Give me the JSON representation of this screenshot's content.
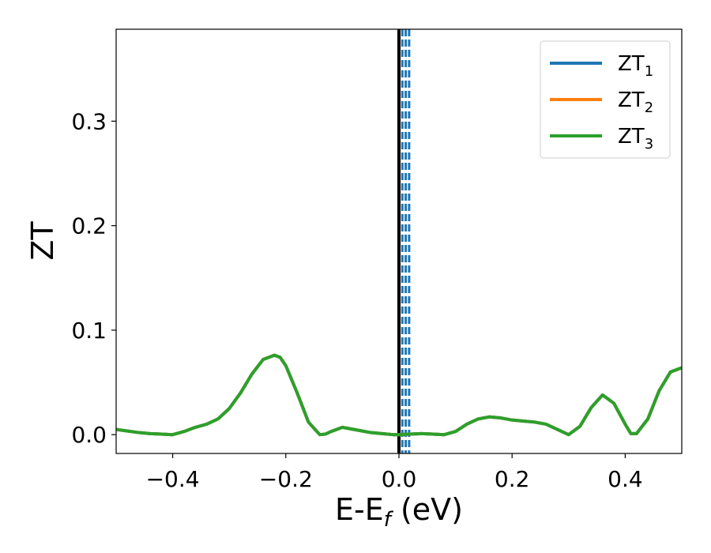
{
  "chart_data": {
    "type": "line",
    "xlabel": "E-E",
    "xlabel_sub": "f",
    "xlabel_unit": " (eV)",
    "ylabel": "ZT",
    "xlim": [
      -0.5,
      0.5
    ],
    "ylim": [
      -0.018,
      0.388
    ],
    "x_ticks": [
      -0.4,
      -0.2,
      0.0,
      0.2,
      0.4
    ],
    "x_tick_labels": [
      "−0.4",
      "−0.2",
      "0.0",
      "0.2",
      "0.4"
    ],
    "y_ticks": [
      0.0,
      0.1,
      0.2,
      0.3
    ],
    "y_tick_labels": [
      "0.0",
      "0.1",
      "0.2",
      "0.3"
    ],
    "grid": false,
    "legend_position": "top-right",
    "x": [
      -0.5,
      -0.46,
      -0.44,
      -0.42,
      -0.4,
      -0.38,
      -0.36,
      -0.34,
      -0.32,
      -0.3,
      -0.28,
      -0.26,
      -0.24,
      -0.22,
      -0.21,
      -0.2,
      -0.18,
      -0.16,
      -0.14,
      -0.13,
      -0.12,
      -0.1,
      -0.09,
      -0.07,
      -0.05,
      -0.03,
      -0.01,
      0.0,
      0.02,
      0.04,
      0.06,
      0.08,
      0.1,
      0.12,
      0.14,
      0.16,
      0.18,
      0.2,
      0.22,
      0.24,
      0.26,
      0.28,
      0.3,
      0.32,
      0.34,
      0.36,
      0.38,
      0.4,
      0.41,
      0.42,
      0.44,
      0.46,
      0.48,
      0.5
    ],
    "series": [
      {
        "name": "ZT",
        "name_sub": "1",
        "color": "#1f77b4",
        "values": [
          0.005,
          0.002,
          0.001,
          0.0005,
          0.0,
          0.003,
          0.007,
          0.01,
          0.015,
          0.025,
          0.04,
          0.058,
          0.072,
          0.076,
          0.074,
          0.066,
          0.04,
          0.012,
          0.0,
          0.0005,
          0.003,
          0.007,
          0.006,
          0.004,
          0.002,
          0.001,
          0.0,
          0.0,
          0.0005,
          0.001,
          0.0005,
          0.0,
          0.003,
          0.01,
          0.015,
          0.017,
          0.016,
          0.014,
          0.013,
          0.012,
          0.01,
          0.005,
          0.0,
          0.008,
          0.026,
          0.038,
          0.03,
          0.01,
          0.001,
          0.001,
          0.015,
          0.042,
          0.06,
          0.064
        ]
      },
      {
        "name": "ZT",
        "name_sub": "2",
        "color": "#ff7f0e",
        "values": [
          0.005,
          0.002,
          0.001,
          0.0005,
          0.0,
          0.003,
          0.007,
          0.01,
          0.015,
          0.025,
          0.04,
          0.058,
          0.072,
          0.076,
          0.074,
          0.066,
          0.04,
          0.012,
          0.0,
          0.0005,
          0.003,
          0.007,
          0.006,
          0.004,
          0.002,
          0.001,
          0.0,
          0.0,
          0.0005,
          0.001,
          0.0005,
          0.0,
          0.003,
          0.01,
          0.015,
          0.017,
          0.016,
          0.014,
          0.013,
          0.012,
          0.01,
          0.005,
          0.0,
          0.008,
          0.026,
          0.038,
          0.03,
          0.01,
          0.001,
          0.001,
          0.015,
          0.042,
          0.06,
          0.064
        ]
      },
      {
        "name": "ZT",
        "name_sub": "3",
        "color": "#2ca02c",
        "values": [
          0.005,
          0.002,
          0.001,
          0.0005,
          0.0,
          0.003,
          0.007,
          0.01,
          0.015,
          0.025,
          0.04,
          0.058,
          0.072,
          0.076,
          0.074,
          0.066,
          0.04,
          0.012,
          0.0,
          0.0005,
          0.003,
          0.007,
          0.006,
          0.004,
          0.002,
          0.001,
          0.0,
          0.0,
          0.0005,
          0.001,
          0.0005,
          0.0,
          0.003,
          0.01,
          0.015,
          0.017,
          0.016,
          0.014,
          0.013,
          0.012,
          0.01,
          0.005,
          0.0,
          0.008,
          0.026,
          0.038,
          0.03,
          0.01,
          0.001,
          0.001,
          0.015,
          0.042,
          0.06,
          0.064
        ]
      }
    ],
    "vertical_lines": [
      {
        "x": 0.0,
        "style": "solid",
        "color": "#000000"
      },
      {
        "x": 0.006,
        "style": "dashed",
        "color": "#1f77b4"
      },
      {
        "x": 0.012,
        "style": "dashed",
        "color": "#1f77b4"
      },
      {
        "x": 0.018,
        "style": "dashed",
        "color": "#1f77b4"
      }
    ]
  }
}
